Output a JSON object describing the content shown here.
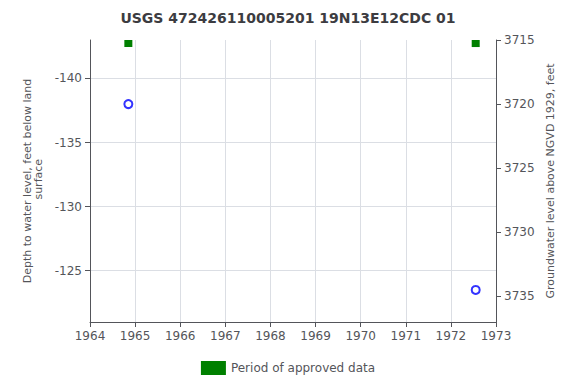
{
  "chart_data": {
    "type": "scatter",
    "title": "USGS 472426110005201 19N13E12CDC 01",
    "ylabel": "Depth to water level, feet below land\n surface",
    "y2label": "Groundwater level above NGVD 1929, feet",
    "xlim": [
      1964,
      1973
    ],
    "xticks": [
      1964,
      1965,
      1966,
      1967,
      1968,
      1969,
      1970,
      1971,
      1972,
      1973
    ],
    "ylim": [
      -121,
      -143
    ],
    "yticks": [
      -140,
      -135,
      -130,
      -125
    ],
    "y2lim": [
      3737,
      3715
    ],
    "y2ticks": [
      3735,
      3730,
      3725,
      3720,
      3715
    ],
    "grid": true,
    "legend": "bottom",
    "series": [
      {
        "type": "scatter",
        "marker": "circle",
        "color": "blue",
        "x": [
          1964.85,
          1972.55
        ],
        "values": [
          -138.0,
          -123.5
        ]
      },
      {
        "type": "bar",
        "name": "Period of approved data",
        "color": "#008000",
        "x": [
          1964.85,
          1972.55
        ]
      }
    ]
  }
}
